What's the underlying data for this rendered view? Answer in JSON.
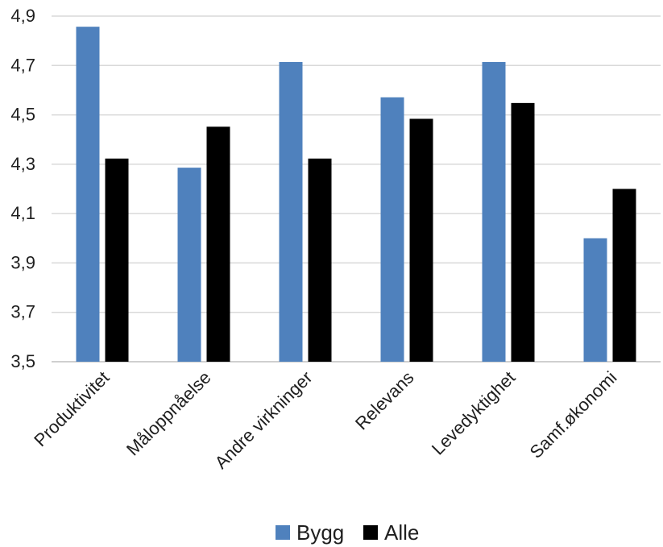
{
  "chart_data": {
    "type": "bar",
    "title": "",
    "xlabel": "",
    "ylabel": "",
    "categories": [
      "Produktivitet",
      "Måloppnåelse",
      "Andre virkninger",
      "Relevans",
      "Levedyktighet",
      "Samf.økonomi"
    ],
    "series": [
      {
        "name": "Bygg",
        "color": "#4f81bd",
        "values": [
          4.857,
          4.286,
          4.714,
          4.571,
          4.714,
          4.0
        ]
      },
      {
        "name": "Alle",
        "color": "#000000",
        "values": [
          4.323,
          4.452,
          4.323,
          4.484,
          4.548,
          4.2
        ]
      }
    ],
    "ylim": [
      3.5,
      4.9
    ],
    "yticks": [
      "3,5",
      "3,7",
      "3,9",
      "4,1",
      "4,3",
      "4,5",
      "4,7",
      "4,9"
    ],
    "ytick_values": [
      3.5,
      3.7,
      3.9,
      4.1,
      4.3,
      4.5,
      4.7,
      4.9
    ],
    "grid": true,
    "legend_position": "bottom"
  }
}
